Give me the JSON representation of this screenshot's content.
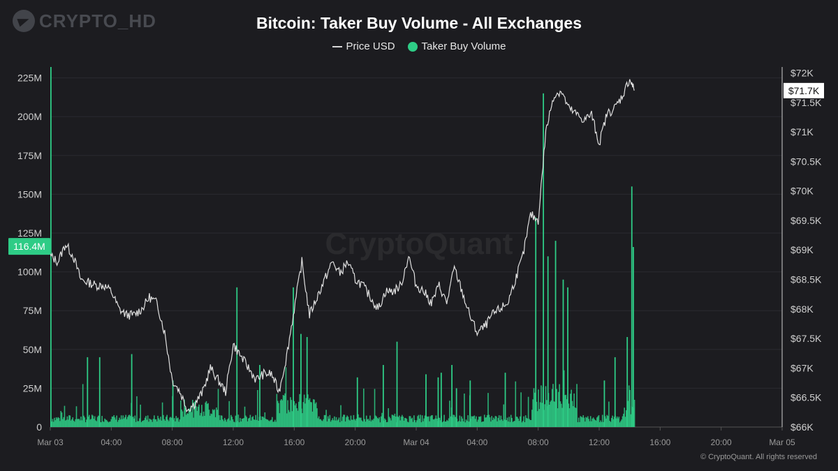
{
  "brand": {
    "name": "CRYPTO_HD",
    "icon": "telegram-icon"
  },
  "watermark": "CryptoQuant",
  "copyright": "© CryptoQuant. All rights reserved",
  "chart_data": {
    "type": "bar",
    "title": "Bitcoin: Taker Buy Volume - All Exchanges",
    "legend": [
      "Price USD",
      "Taker Buy Volume"
    ],
    "left_axis": {
      "ticks": [
        0,
        25,
        50,
        75,
        100,
        125,
        150,
        175,
        200,
        225
      ],
      "labels": [
        "0",
        "25M",
        "50M",
        "75M",
        "100M",
        "125M",
        "150M",
        "175M",
        "200M",
        "225M"
      ],
      "range": [
        0,
        232
      ]
    },
    "right_axis": {
      "ticks": [
        66,
        66.5,
        67,
        67.5,
        68,
        68.5,
        69,
        69.5,
        70,
        70.5,
        71,
        71.5,
        72
      ],
      "labels": [
        "$66K",
        "$66.5K",
        "$67K",
        "$67.5K",
        "$68K",
        "$68.5K",
        "$69K",
        "$69.5K",
        "$70K",
        "$70.5K",
        "$71K",
        "$71.5K",
        "$72K"
      ],
      "range": [
        66,
        72.1
      ]
    },
    "x_axis": {
      "labels": [
        "Mar 03",
        "04:00",
        "08:00",
        "12:00",
        "16:00",
        "20:00",
        "Mar 04",
        "04:00",
        "08:00",
        "12:00",
        "16:00",
        "20:00",
        "Mar 05"
      ],
      "hours": [
        0,
        4,
        8,
        12,
        16,
        20,
        24,
        28,
        32,
        36,
        40,
        44,
        48
      ]
    },
    "current_volume_label": "116.4M",
    "current_volume": 116.4,
    "current_price_label": "$71.7K",
    "current_price": 71.7,
    "colors": {
      "price": "#e0e0e0",
      "volume": "#2ecc86",
      "volume_dark": "#1f9e63"
    },
    "price_series": {
      "hours": [
        0,
        0.5,
        1,
        1.5,
        2,
        2.5,
        3,
        3.5,
        4,
        4.5,
        5,
        5.5,
        6,
        6.5,
        7,
        7.5,
        8,
        8.5,
        9,
        9.5,
        10,
        10.5,
        11,
        11.5,
        12,
        12.5,
        13,
        13.5,
        14,
        14.5,
        15,
        15.5,
        16,
        16.5,
        17,
        17.5,
        18,
        18.5,
        19,
        19.5,
        20,
        20.5,
        21,
        21.5,
        22,
        22.5,
        23,
        23.5,
        24,
        24.5,
        25,
        25.5,
        26,
        26.5,
        27,
        27.5,
        28,
        28.5,
        29,
        29.5,
        30,
        30.5,
        31,
        31.5,
        32,
        32.5,
        33,
        33.5,
        34,
        34.5,
        35,
        35.5,
        36,
        36.5,
        37,
        37.5,
        38,
        38.3
      ],
      "values": [
        68.9,
        68.8,
        69.1,
        68.9,
        68.5,
        68.45,
        68.4,
        68.4,
        68.3,
        68.0,
        67.9,
        67.9,
        68.0,
        68.2,
        68.1,
        67.6,
        66.8,
        66.6,
        66.3,
        66.4,
        66.6,
        67.0,
        66.8,
        66.6,
        67.4,
        67.2,
        67.0,
        66.8,
        66.9,
        66.9,
        66.6,
        67.2,
        68.0,
        68.8,
        67.9,
        68.2,
        68.5,
        68.8,
        68.6,
        68.8,
        68.5,
        68.4,
        68.2,
        68.0,
        68.3,
        68.3,
        68.4,
        68.9,
        68.4,
        68.3,
        68.1,
        68.4,
        68.1,
        68.7,
        68.3,
        67.9,
        67.6,
        67.7,
        67.9,
        68.0,
        68.1,
        68.5,
        68.9,
        69.6,
        69.5,
        71.0,
        71.6,
        71.7,
        71.4,
        71.3,
        71.2,
        71.3,
        70.8,
        71.3,
        71.4,
        71.6,
        71.9,
        71.7
      ],
      "volume_spikes": [
        {
          "hour": 0.0,
          "value": 232
        },
        {
          "hour": 2.4,
          "value": 45
        },
        {
          "hour": 3.2,
          "value": 45
        },
        {
          "hour": 5.3,
          "value": 47
        },
        {
          "hour": 8.0,
          "value": 30
        },
        {
          "hour": 12.2,
          "value": 90
        },
        {
          "hour": 13.7,
          "value": 40
        },
        {
          "hour": 15.9,
          "value": 90
        },
        {
          "hour": 16.4,
          "value": 60
        },
        {
          "hour": 16.8,
          "value": 58
        },
        {
          "hour": 20.1,
          "value": 32
        },
        {
          "hour": 21.8,
          "value": 40
        },
        {
          "hour": 22.7,
          "value": 55
        },
        {
          "hour": 24.6,
          "value": 34
        },
        {
          "hour": 25.4,
          "value": 32
        },
        {
          "hour": 25.6,
          "value": 35
        },
        {
          "hour": 26.3,
          "value": 40
        },
        {
          "hour": 26.6,
          "value": 25
        },
        {
          "hour": 27.5,
          "value": 30
        },
        {
          "hour": 29.8,
          "value": 35
        },
        {
          "hour": 31.8,
          "value": 135
        },
        {
          "hour": 32.3,
          "value": 215
        },
        {
          "hour": 32.6,
          "value": 110
        },
        {
          "hour": 33.1,
          "value": 120
        },
        {
          "hour": 33.6,
          "value": 95
        },
        {
          "hour": 33.9,
          "value": 90
        },
        {
          "hour": 36.3,
          "value": 30
        },
        {
          "hour": 37.0,
          "value": 45
        },
        {
          "hour": 37.8,
          "value": 58
        },
        {
          "hour": 38.1,
          "value": 155
        },
        {
          "hour": 38.2,
          "value": 116
        }
      ]
    }
  }
}
